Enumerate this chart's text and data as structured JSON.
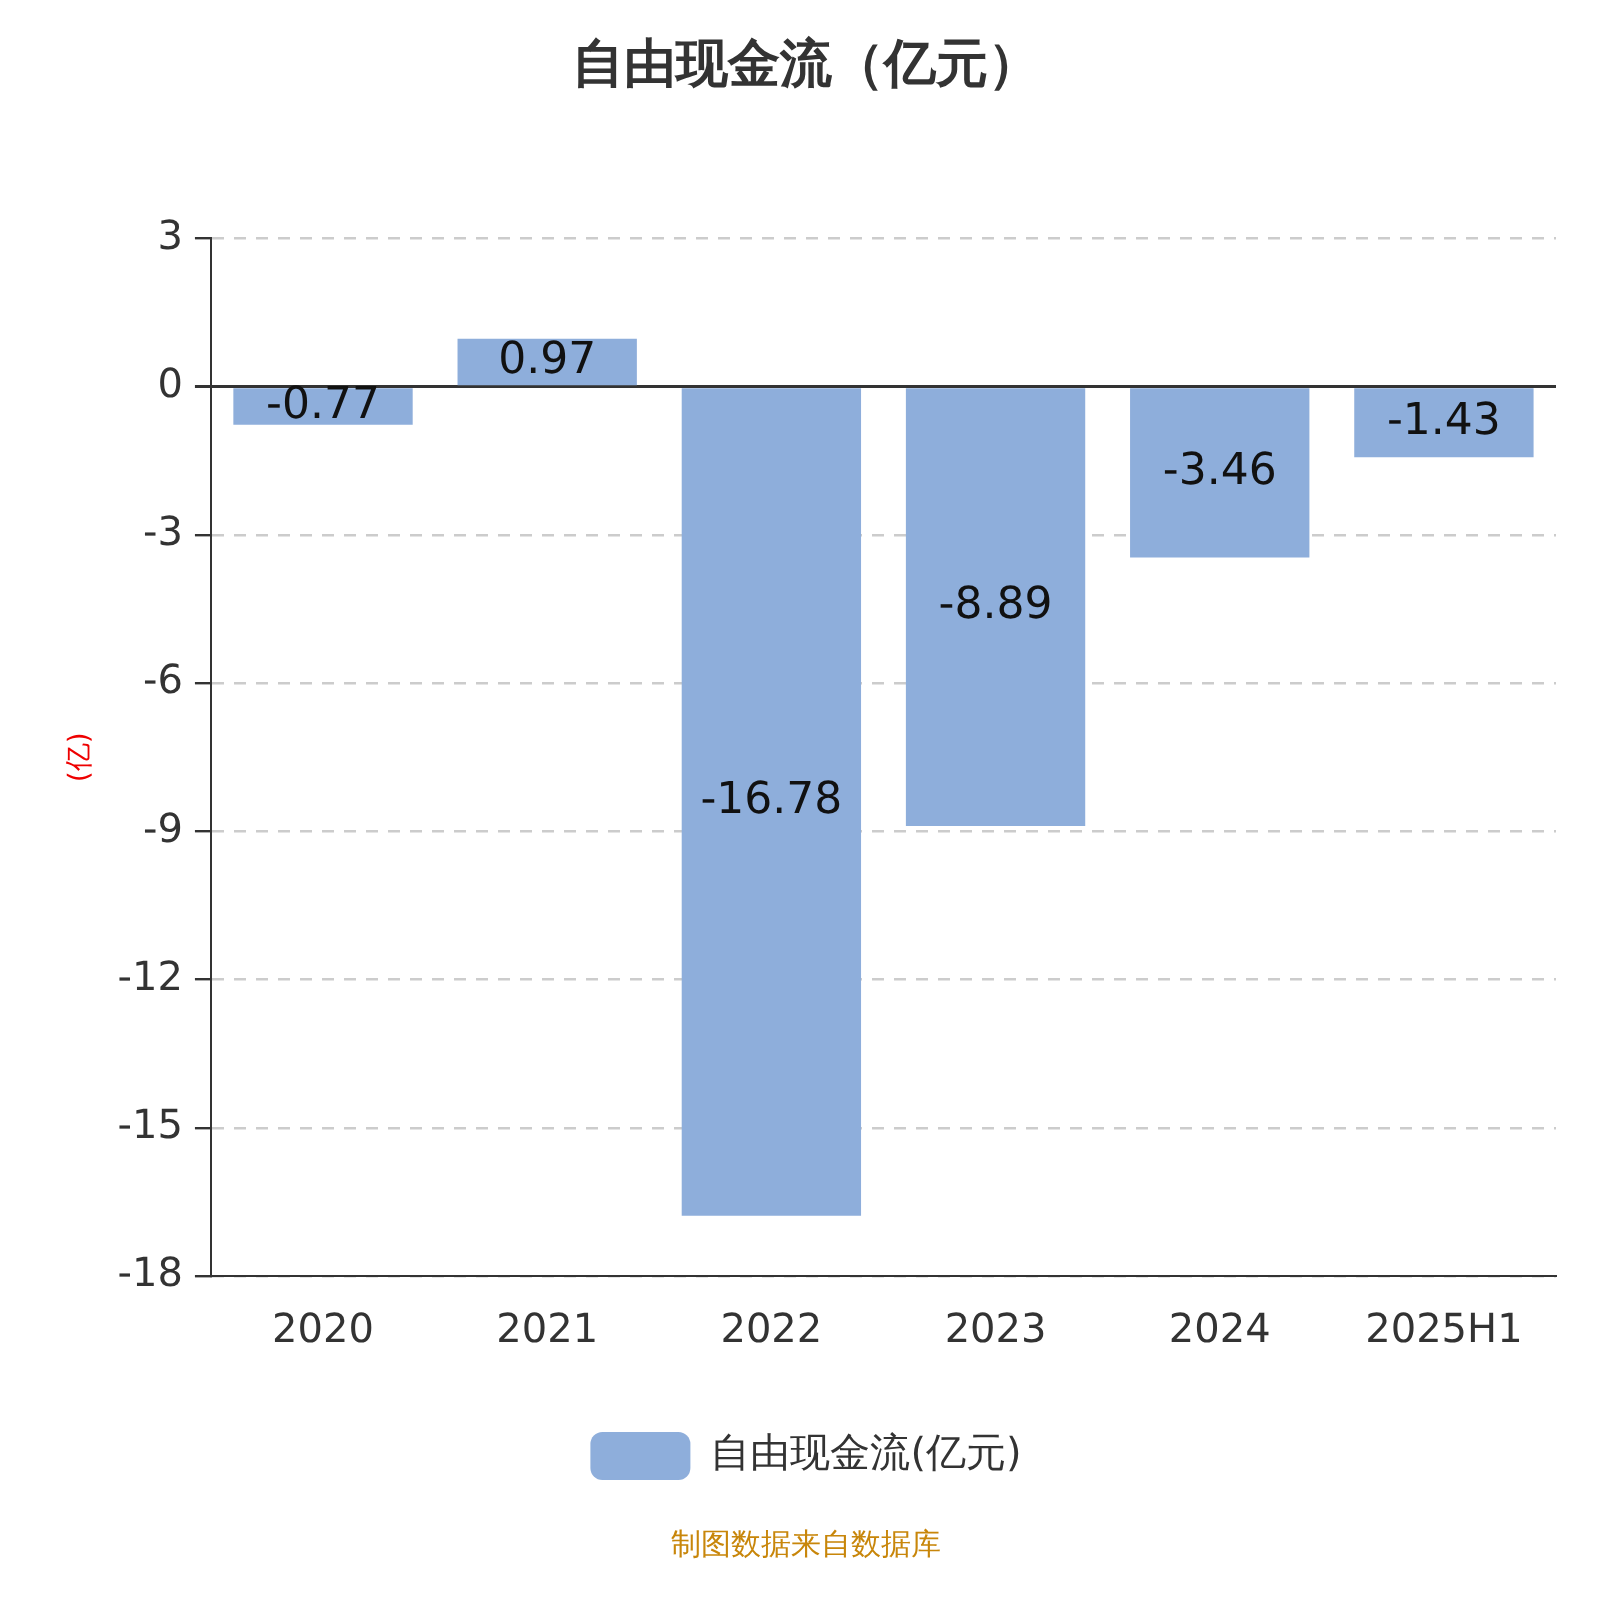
{
  "chart_data": {
    "type": "bar",
    "title": "自由现金流（亿元）",
    "ylabel": "(亿)",
    "categories": [
      "2020",
      "2021",
      "2022",
      "2023",
      "2024",
      "2025H1"
    ],
    "series": [
      {
        "name": "自由现金流(亿元)",
        "color": "#8eaedb",
        "values": [
          -0.77,
          0.97,
          -16.78,
          -8.89,
          -3.46,
          -1.43
        ]
      }
    ],
    "ylim": [
      -18,
      3
    ],
    "yticks": [
      3,
      0,
      -3,
      -6,
      -9,
      -12,
      -15,
      -18
    ],
    "grid": "y",
    "legend": "bottom",
    "data_labels": true,
    "annotations": [
      "制图数据来自数据库"
    ]
  }
}
